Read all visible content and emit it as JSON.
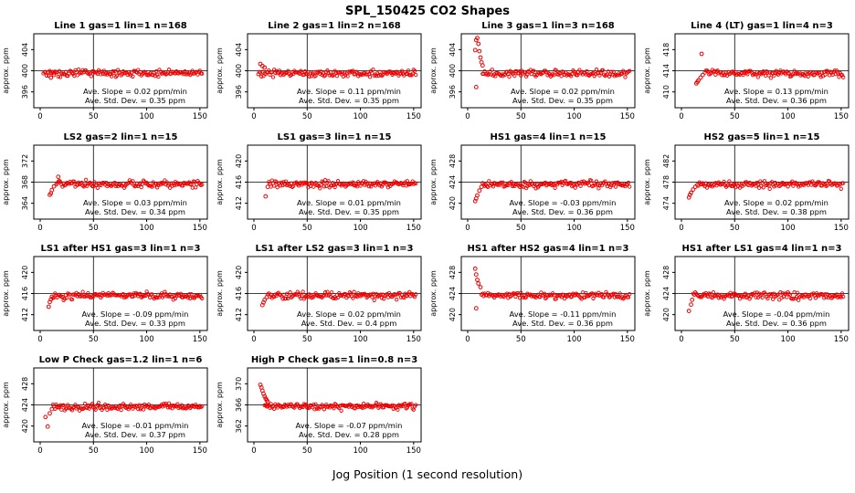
{
  "title": "SPL_150425  CO2 Shapes",
  "xlabel": "Jog Position (1 second resolution)",
  "point_color": "#ee0000",
  "line_color": "#000000",
  "chart_data": [
    {
      "type": "scatter",
      "title": "Line 1 gas=1 lin=1 n=168",
      "ylabel": "approx. ppm",
      "yticks": [
        396,
        400,
        404
      ],
      "baseline": 400,
      "xticks": [
        0,
        50,
        100,
        150
      ],
      "xlim": [
        0,
        155
      ],
      "vline_x": 50,
      "ave_slope": 0.02,
      "ave_std_dev": 0.35,
      "slope_label": "Ave. Slope =  0.02  ppm/min",
      "std_label": "Ave. Std. Dev. =  0.35  ppm",
      "n_points": 150,
      "noise_sd": 0.45,
      "band_offset": -0.5,
      "band_start": 3,
      "seed": 1,
      "anomalies": [
        [
          10,
          398.7
        ],
        [
          13,
          399.2
        ]
      ]
    },
    {
      "type": "scatter",
      "title": "Line 2 gas=1 lin=2 n=168",
      "ylabel": "approx. ppm",
      "yticks": [
        396,
        400,
        404
      ],
      "baseline": 400,
      "xticks": [
        0,
        50,
        100,
        150
      ],
      "xlim": [
        0,
        155
      ],
      "vline_x": 50,
      "ave_slope": 0.11,
      "ave_std_dev": 0.35,
      "slope_label": "Ave. Slope =  0.11  ppm/min",
      "std_label": "Ave. Std. Dev. =  0.35  ppm",
      "n_points": 150,
      "noise_sd": 0.45,
      "band_offset": -0.5,
      "band_start": 4,
      "seed": 2,
      "anomalies": [
        [
          6,
          401.3
        ],
        [
          8,
          400.9
        ],
        [
          10,
          400.6
        ]
      ]
    },
    {
      "type": "scatter",
      "title": "Line 3 gas=1 lin=3 n=168",
      "ylabel": "approx. ppm",
      "yticks": [
        396,
        400,
        404
      ],
      "baseline": 400,
      "xticks": [
        0,
        50,
        100,
        150
      ],
      "xlim": [
        0,
        155
      ],
      "vline_x": 50,
      "ave_slope": 0.02,
      "ave_std_dev": 0.35,
      "slope_label": "Ave. Slope =  0.02  ppm/min",
      "std_label": "Ave. Std. Dev. =  0.35  ppm",
      "n_points": 150,
      "noise_sd": 0.45,
      "band_offset": -0.5,
      "band_start": 14,
      "seed": 3,
      "anomalies": [
        [
          7,
          403.9
        ],
        [
          8,
          405.8
        ],
        [
          9,
          406.2
        ],
        [
          10,
          405.1
        ],
        [
          11,
          403.7
        ],
        [
          12,
          402.5
        ],
        [
          13,
          401.6
        ],
        [
          14,
          401.0
        ],
        [
          8,
          396.9
        ]
      ]
    },
    {
      "type": "scatter",
      "title": "Line 4 (LT) gas=1 lin=4 n=3",
      "ylabel": "approx. ppm",
      "yticks": [
        410,
        414,
        418
      ],
      "baseline": 414,
      "xticks": [
        0,
        50,
        100,
        150
      ],
      "xlim": [
        0,
        155
      ],
      "vline_x": 50,
      "ave_slope": 0.13,
      "ave_std_dev": 0.36,
      "slope_label": "Ave. Slope =  0.13  ppm/min",
      "std_label": "Ave. Std. Dev. =  0.36  ppm",
      "n_points": 150,
      "noise_sd": 0.45,
      "band_offset": -0.5,
      "band_start": 22,
      "seed": 4,
      "anomalies": [
        [
          14,
          411.6
        ],
        [
          15,
          411.9
        ],
        [
          16,
          412.2
        ],
        [
          18,
          412.7
        ],
        [
          20,
          413.2
        ],
        [
          19,
          417.2
        ]
      ]
    },
    {
      "type": "scatter",
      "title": "LS2 gas=2 lin=1 n=15",
      "ylabel": "approx. ppm",
      "yticks": [
        364,
        368,
        372
      ],
      "baseline": 368,
      "xticks": [
        0,
        50,
        100,
        150
      ],
      "xlim": [
        0,
        155
      ],
      "vline_x": 50,
      "ave_slope": 0.03,
      "ave_std_dev": 0.34,
      "slope_label": "Ave. Slope =  0.03  ppm/min",
      "std_label": "Ave. Std. Dev. =  0.34  ppm",
      "n_points": 150,
      "noise_sd": 0.45,
      "band_offset": -0.4,
      "band_start": 15,
      "seed": 5,
      "anomalies": [
        [
          9,
          365.6
        ],
        [
          10,
          365.9
        ],
        [
          11,
          366.5
        ],
        [
          13,
          367.2
        ],
        [
          17,
          369.0
        ]
      ]
    },
    {
      "type": "scatter",
      "title": "LS1 gas=3 lin=1 n=15",
      "ylabel": "approx. ppm",
      "yticks": [
        412,
        416,
        420
      ],
      "baseline": 416,
      "xticks": [
        0,
        50,
        100,
        150
      ],
      "xlim": [
        0,
        155
      ],
      "vline_x": 50,
      "ave_slope": 0.01,
      "ave_std_dev": 0.35,
      "slope_label": "Ave. Slope =  0.01  ppm/min",
      "std_label": "Ave. Std. Dev. =  0.35  ppm",
      "n_points": 150,
      "noise_sd": 0.45,
      "band_offset": -0.4,
      "band_start": 14,
      "seed": 6,
      "anomalies": [
        [
          11,
          413.3
        ],
        [
          13,
          415.1
        ]
      ]
    },
    {
      "type": "scatter",
      "title": "HS1 gas=4 lin=1 n=15",
      "ylabel": "approx. ppm",
      "yticks": [
        420,
        424,
        428
      ],
      "baseline": 424,
      "xticks": [
        0,
        50,
        100,
        150
      ],
      "xlim": [
        0,
        155
      ],
      "vline_x": 50,
      "ave_slope": -0.03,
      "ave_std_dev": 0.36,
      "slope_label": "Ave. Slope =  -0.03  ppm/min",
      "std_label": "Ave. Std. Dev. =  0.36  ppm",
      "n_points": 150,
      "noise_sd": 0.45,
      "band_offset": -0.4,
      "band_start": 14,
      "seed": 7,
      "anomalies": [
        [
          7,
          420.4
        ],
        [
          8,
          420.9
        ],
        [
          9,
          421.5
        ],
        [
          11,
          422.4
        ],
        [
          13,
          423.1
        ]
      ]
    },
    {
      "type": "scatter",
      "title": "HS2 gas=5 lin=1 n=15",
      "ylabel": "approx. ppm",
      "yticks": [
        474,
        478,
        482
      ],
      "baseline": 478,
      "xticks": [
        0,
        50,
        100,
        150
      ],
      "xlim": [
        0,
        155
      ],
      "vline_x": 50,
      "ave_slope": 0.02,
      "ave_std_dev": 0.38,
      "slope_label": "Ave. Slope =  0.02  ppm/min",
      "std_label": "Ave. Std. Dev. =  0.38  ppm",
      "n_points": 150,
      "noise_sd": 0.45,
      "band_offset": -0.4,
      "band_start": 16,
      "seed": 8,
      "anomalies": [
        [
          7,
          475.1
        ],
        [
          8,
          475.6
        ],
        [
          9,
          476.0
        ],
        [
          11,
          476.6
        ],
        [
          13,
          477.1
        ],
        [
          15,
          477.5
        ]
      ]
    },
    {
      "type": "scatter",
      "title": "LS1 after HS1 gas=3 lin=1 n=3",
      "ylabel": "approx. ppm",
      "yticks": [
        412,
        416,
        420
      ],
      "baseline": 416,
      "xticks": [
        0,
        50,
        100,
        150
      ],
      "xlim": [
        0,
        155
      ],
      "vline_x": 50,
      "ave_slope": -0.09,
      "ave_std_dev": 0.33,
      "slope_label": "Ave. Slope =  -0.09  ppm/min",
      "std_label": "Ave. Std. Dev. =  0.33  ppm",
      "n_points": 150,
      "noise_sd": 0.45,
      "band_offset": -0.4,
      "band_start": 12,
      "seed": 9,
      "anomalies": [
        [
          8,
          413.5
        ],
        [
          9,
          414.4
        ],
        [
          10,
          414.9
        ],
        [
          11,
          415.4
        ]
      ]
    },
    {
      "type": "scatter",
      "title": "LS1 after LS2 gas=3 lin=1 n=3",
      "ylabel": "approx. ppm",
      "yticks": [
        412,
        416,
        420
      ],
      "baseline": 416,
      "xticks": [
        0,
        50,
        100,
        150
      ],
      "xlim": [
        0,
        155
      ],
      "vline_x": 50,
      "ave_slope": 0.02,
      "ave_std_dev": 0.4,
      "slope_label": "Ave. Slope =  0.02  ppm/min",
      "std_label": "Ave. Std. Dev. =  0.4  ppm",
      "n_points": 150,
      "noise_sd": 0.45,
      "band_offset": -0.4,
      "band_start": 13,
      "seed": 10,
      "anomalies": [
        [
          8,
          413.8
        ],
        [
          9,
          414.3
        ],
        [
          10,
          414.8
        ],
        [
          12,
          415.3
        ]
      ]
    },
    {
      "type": "scatter",
      "title": "HS1 after HS2 gas=4 lin=1 n=3",
      "ylabel": "approx. ppm",
      "yticks": [
        420,
        424,
        428
      ],
      "baseline": 424,
      "xticks": [
        0,
        50,
        100,
        150
      ],
      "xlim": [
        0,
        155
      ],
      "vline_x": 50,
      "ave_slope": -0.11,
      "ave_std_dev": 0.36,
      "slope_label": "Ave. Slope =  -0.11  ppm/min",
      "std_label": "Ave. Std. Dev. =  0.36  ppm",
      "n_points": 150,
      "noise_sd": 0.45,
      "band_offset": -0.4,
      "band_start": 13,
      "seed": 11,
      "anomalies": [
        [
          7,
          428.7
        ],
        [
          8,
          427.6
        ],
        [
          9,
          426.6
        ],
        [
          10,
          425.9
        ],
        [
          12,
          425.2
        ],
        [
          8,
          421.2
        ]
      ]
    },
    {
      "type": "scatter",
      "title": "HS1 after LS1 gas=4 lin=1 n=3",
      "ylabel": "approx. ppm",
      "yticks": [
        420,
        424,
        428
      ],
      "baseline": 424,
      "xticks": [
        0,
        50,
        100,
        150
      ],
      "xlim": [
        0,
        155
      ],
      "vline_x": 50,
      "ave_slope": -0.04,
      "ave_std_dev": 0.36,
      "slope_label": "Ave. Slope =  -0.04  ppm/min",
      "std_label": "Ave. Std. Dev. =  0.36  ppm",
      "n_points": 150,
      "noise_sd": 0.45,
      "band_offset": -0.4,
      "band_start": 11,
      "seed": 12,
      "anomalies": [
        [
          7,
          420.7
        ],
        [
          9,
          421.9
        ],
        [
          10,
          422.8
        ]
      ]
    },
    {
      "type": "scatter",
      "title": "Low P Check gas=1.2 lin=1 n=6",
      "ylabel": "approx. ppm",
      "yticks": [
        420,
        424,
        428
      ],
      "baseline": 424,
      "xticks": [
        0,
        50,
        100,
        150
      ],
      "xlim": [
        0,
        155
      ],
      "vline_x": 50,
      "ave_slope": -0.01,
      "ave_std_dev": 0.37,
      "slope_label": "Ave. Slope =  -0.01  ppm/min",
      "std_label": "Ave. Std. Dev. =  0.37  ppm",
      "n_points": 150,
      "noise_sd": 0.45,
      "band_offset": -0.4,
      "band_start": 12,
      "seed": 13,
      "anomalies": [
        [
          5,
          421.7
        ],
        [
          7,
          419.9
        ],
        [
          9,
          422.4
        ],
        [
          11,
          423.2
        ]
      ]
    },
    {
      "type": "scatter",
      "title": "High P Check gas=1 lin=0.8 n=3",
      "ylabel": "approx. ppm",
      "yticks": [
        362,
        366,
        370
      ],
      "baseline": 366,
      "xticks": [
        0,
        50,
        100,
        150
      ],
      "xlim": [
        0,
        155
      ],
      "vline_x": 50,
      "ave_slope": -0.07,
      "ave_std_dev": 0.28,
      "slope_label": "Ave. Slope =  -0.07  ppm/min",
      "std_label": "Ave. Std. Dev. =  0.28  ppm",
      "n_points": 150,
      "noise_sd": 0.4,
      "band_offset": -0.3,
      "band_start": 10,
      "seed": 14,
      "anomalies": [
        [
          6,
          369.8
        ],
        [
          7,
          369.3
        ],
        [
          8,
          368.7
        ],
        [
          9,
          368.1
        ],
        [
          10,
          367.6
        ],
        [
          11,
          367.2
        ],
        [
          12,
          366.9
        ],
        [
          13,
          366.6
        ]
      ]
    }
  ]
}
